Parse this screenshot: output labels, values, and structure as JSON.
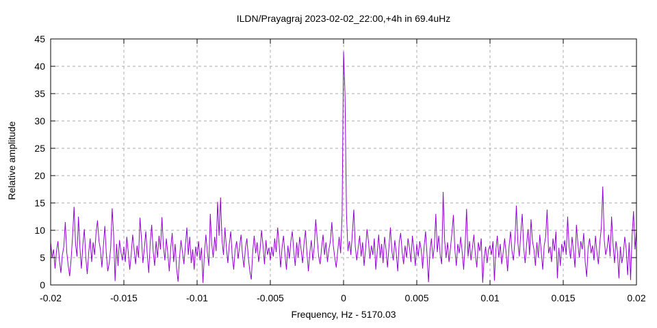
{
  "chart_data": {
    "type": "line",
    "title": "ILDN/Prayagraj 2023-02-02_22:00,+4h in 69.4uHz",
    "xlabel": "Frequency, Hz - 5170.03",
    "ylabel": "Relative amplitude",
    "xlim": [
      -0.02,
      0.02
    ],
    "ylim": [
      0,
      45
    ],
    "x_ticks": [
      -0.02,
      -0.015,
      -0.01,
      -0.005,
      0,
      0.005,
      0.01,
      0.015,
      0.02
    ],
    "x_tick_labels": [
      "-0.02",
      "-0.015",
      "-0.01",
      "-0.005",
      "0",
      "0.005",
      "0.01",
      "0.015",
      "0.02"
    ],
    "y_ticks": [
      0,
      5,
      10,
      15,
      20,
      25,
      30,
      35,
      40,
      45
    ],
    "y_tick_labels": [
      "0",
      "5",
      "10",
      "15",
      "20",
      "25",
      "30",
      "35",
      "40",
      "45"
    ],
    "grid": true,
    "legend": "none",
    "line_color": "#9400D3",
    "grid_color": "#ababab",
    "border_color": "#000000",
    "background_color": "#ffffff",
    "notable_features": {
      "main_peak": {
        "x": 0,
        "y": 42.5
      },
      "secondary_peaks": [
        {
          "x": -0.0085,
          "y": 16
        },
        {
          "x": 0.0068,
          "y": 17
        },
        {
          "x": 0.0118,
          "y": 14.5
        },
        {
          "x": 0.0177,
          "y": 18
        }
      ],
      "noise_band": [
        0.4,
        16
      ]
    },
    "series": [
      {
        "name": "spectrum",
        "x_start": -0.02,
        "x_step": 0.0001,
        "values": [
          7.8,
          5.0,
          6.5,
          3.0,
          6.2,
          8.0,
          4.5,
          2.2,
          5.5,
          7.0,
          11.5,
          6.0,
          3.5,
          1.6,
          4.8,
          9.0,
          14.3,
          7.5,
          5.2,
          12.5,
          6.8,
          3.0,
          7.4,
          10.2,
          5.0,
          2.0,
          6.0,
          8.5,
          4.2,
          7.8,
          5.5,
          9.5,
          11.8,
          8.0,
          6.5,
          3.2,
          7.0,
          10.8,
          5.8,
          2.5,
          4.0,
          6.8,
          14.0,
          9.2,
          0.7,
          7.5,
          3.5,
          8.2,
          6.0,
          4.5,
          7.0,
          4.2,
          8.8,
          6.0,
          2.8,
          5.5,
          9.2,
          6.5,
          3.8,
          7.2,
          5.0,
          12.3,
          8.5,
          4.0,
          6.8,
          9.8,
          5.5,
          2.2,
          7.8,
          11.0,
          6.2,
          3.5,
          8.0,
          5.0,
          9.0,
          6.5,
          12.4,
          7.0,
          4.5,
          8.5,
          5.8,
          2.5,
          6.8,
          9.5,
          4.2,
          7.5,
          3.0,
          0.6,
          5.0,
          8.2,
          6.0,
          3.8,
          7.2,
          10.5,
          5.5,
          8.8,
          4.0,
          6.5,
          2.8,
          7.0,
          5.2,
          8.0,
          4.5,
          6.8,
          0.4,
          5.8,
          9.2,
          6.0,
          3.5,
          13.0,
          7.5,
          5.0,
          8.8,
          6.2,
          15.2,
          9.0,
          16.0,
          8.2,
          5.5,
          10.5,
          6.8,
          4.0,
          7.5,
          9.8,
          5.2,
          2.8,
          6.5,
          8.0,
          4.8,
          7.0,
          9.2,
          5.5,
          3.2,
          6.8,
          8.5,
          5.0,
          2.5,
          1.0,
          6.2,
          9.0,
          5.8,
          7.8,
          4.2,
          6.5,
          10.0,
          7.2,
          3.8,
          8.2,
          5.5,
          6.8,
          4.5,
          7.0,
          5.2,
          8.5,
          6.0,
          10.5,
          7.5,
          3.2,
          6.8,
          9.0,
          5.5,
          2.8,
          7.2,
          4.8,
          8.0,
          9.8,
          6.2,
          3.5,
          7.8,
          5.0,
          8.8,
          6.5,
          4.0,
          7.5,
          10.0,
          5.8,
          2.5,
          6.0,
          8.2,
          4.5,
          7.0,
          12.0,
          8.5,
          5.2,
          3.8,
          6.8,
          9.2,
          5.5,
          7.8,
          4.2,
          6.5,
          8.0,
          11.5,
          7.2,
          5.0,
          3.2,
          6.2,
          8.8,
          5.8,
          12.8,
          42.7,
          34.7,
          13.0,
          6.2,
          8.0,
          5.5,
          9.5,
          13.8,
          7.0,
          4.5,
          6.8,
          9.0,
          5.2,
          7.8,
          3.5,
          6.5,
          10.2,
          8.0,
          4.8,
          7.2,
          5.5,
          8.5,
          2.8,
          6.0,
          9.2,
          5.0,
          7.5,
          4.0,
          8.8,
          6.5,
          3.2,
          7.0,
          10.5,
          6.2,
          4.5,
          8.2,
          5.8,
          2.5,
          7.8,
          9.5,
          6.0,
          3.8,
          7.2,
          5.0,
          8.5,
          6.8,
          4.2,
          9.0,
          6.5,
          3.5,
          7.5,
          5.2,
          8.0,
          6.5,
          3.0,
          7.0,
          9.8,
          5.5,
          0.5,
          6.2,
          8.5,
          4.8,
          7.2,
          13.0,
          6.0,
          9.0,
          5.5,
          3.8,
          17.0,
          8.2,
          5.0,
          7.8,
          4.2,
          6.8,
          9.5,
          12.8,
          6.5,
          3.5,
          7.5,
          5.8,
          8.8,
          6.0,
          2.8,
          7.2,
          13.9,
          5.2,
          8.0,
          4.5,
          6.8,
          9.2,
          5.5,
          3.2,
          7.8,
          6.2,
          8.5,
          0.4,
          5.0,
          7.0,
          4.0,
          6.5,
          7.2,
          5.5,
          8.0,
          0.8,
          6.5,
          9.0,
          5.0,
          7.5,
          3.8,
          6.0,
          8.5,
          5.8,
          2.5,
          7.0,
          9.8,
          6.2,
          4.5,
          8.2,
          14.5,
          7.8,
          5.2,
          9.5,
          13.0,
          6.8,
          4.0,
          7.5,
          10.2,
          5.5,
          12.0,
          8.0,
          6.5,
          3.5,
          7.8,
          5.0,
          9.2,
          6.0,
          2.8,
          7.2,
          8.8,
          13.8,
          5.8,
          7.0,
          4.2,
          8.5,
          6.2,
          9.8,
          1.2,
          6.8,
          3.5,
          7.5,
          6.0,
          8.2,
          5.5,
          12.5,
          7.0,
          4.8,
          8.8,
          6.2,
          3.2,
          11.0,
          7.5,
          5.0,
          8.0,
          6.5,
          9.5,
          4.2,
          1.5,
          6.8,
          8.5,
          5.8,
          7.2,
          4.5,
          9.0,
          6.0,
          3.8,
          7.8,
          10.5,
          18.0,
          8.2,
          5.5,
          6.8,
          9.2,
          5.2,
          12.5,
          7.5,
          4.0,
          8.0,
          6.2,
          1.2,
          7.0,
          4.0,
          5.5,
          8.8,
          6.5,
          1.8,
          7.8,
          0.9,
          9.0,
          13.5,
          6.5,
          10.0
        ]
      }
    ]
  }
}
